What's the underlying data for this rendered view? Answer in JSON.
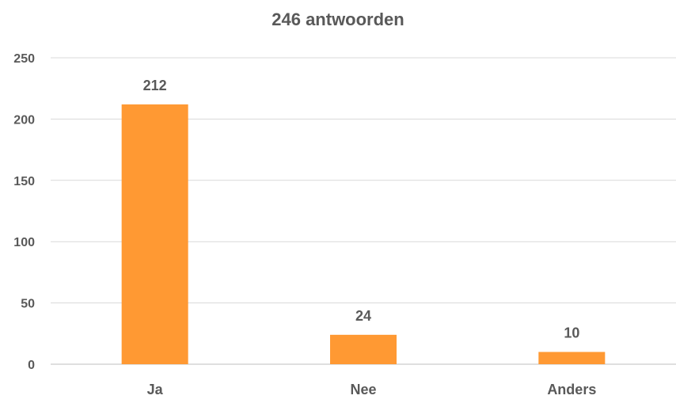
{
  "chart_data": {
    "type": "bar",
    "title": "246 antwoorden",
    "categories": [
      "Ja",
      "Nee",
      "Anders"
    ],
    "values": [
      212,
      24,
      10
    ],
    "data_labels": [
      "212",
      "24",
      "10"
    ],
    "ylim": [
      0,
      250
    ],
    "yticks": [
      0,
      50,
      100,
      150,
      200,
      250
    ],
    "ytick_labels": [
      "0",
      "50",
      "100",
      "150",
      "200",
      "250"
    ],
    "xlabel": "",
    "ylabel": "",
    "grid": true,
    "legend": "none",
    "colors": {
      "bar": "#FF9933",
      "grid": "#d9d9d9",
      "text": "#595959"
    }
  }
}
